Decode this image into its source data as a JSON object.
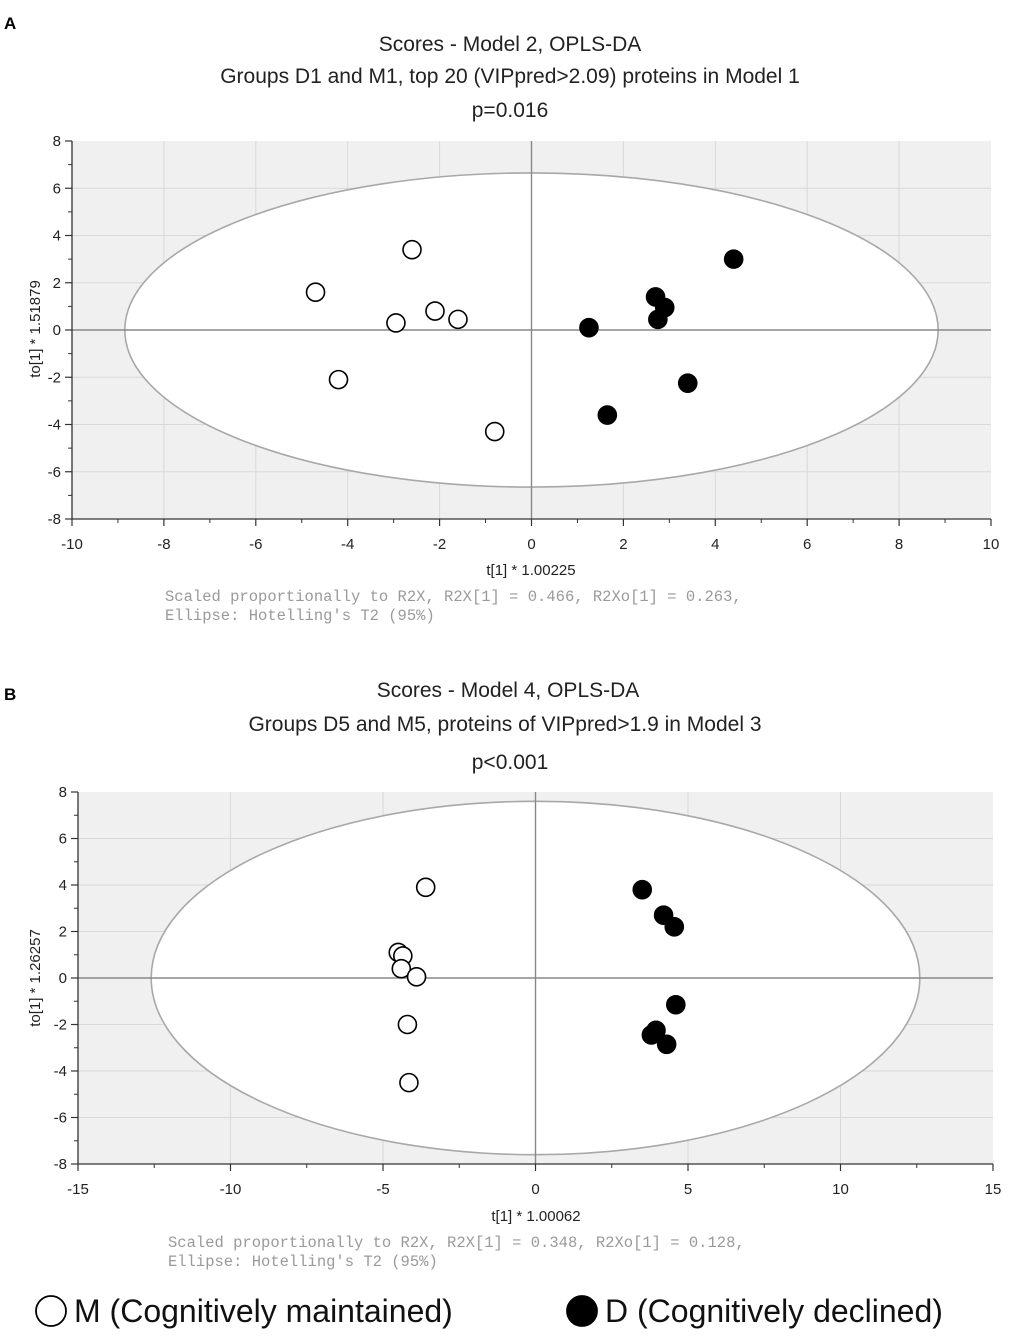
{
  "legend": [
    {
      "label": "M (Cognitively maintained)",
      "fill": "#ffffff",
      "stroke": "#000000"
    },
    {
      "label": "D (Cognitively declined)",
      "fill": "#000000",
      "stroke": "#000000"
    }
  ],
  "colors": {
    "ellipse": "#a8a8a8",
    "background": "#f0f0f0",
    "axes_center": "#888888",
    "grid": "#d9d9d9"
  },
  "chart_data": [
    {
      "type": "scatter",
      "panel": "A",
      "title": [
        "Scores - Model 2, OPLS-DA",
        "Groups D1 and M1, top 20 (VIPpred>2.09) proteins in Model 1",
        "p=0.016"
      ],
      "xlabel": "t[1] * 1.00225",
      "ylabel": "to[1] * 1.51879",
      "xlim": [
        -10,
        10
      ],
      "ylim": [
        -8,
        8
      ],
      "xticks": [
        -10,
        -8,
        -6,
        -4,
        -2,
        0,
        2,
        4,
        6,
        8,
        10
      ],
      "yticks": [
        -8,
        -6,
        -4,
        -2,
        0,
        2,
        4,
        6,
        8
      ],
      "ellipse": {
        "rx": 8.85,
        "ry": 6.65
      },
      "footnote": [
        "Scaled proportionally to R2X, R2X[1] = 0.466, R2Xo[1] = 0.263,",
        "Ellipse: Hotelling's T2 (95%)"
      ],
      "series": [
        {
          "name": "M (Cognitively maintained)",
          "filled": false,
          "points": [
            [
              -4.7,
              1.6
            ],
            [
              -2.6,
              3.4
            ],
            [
              -2.95,
              0.3
            ],
            [
              -2.1,
              0.8
            ],
            [
              -1.6,
              0.45
            ],
            [
              -4.2,
              -2.1
            ],
            [
              -0.8,
              -4.3
            ]
          ]
        },
        {
          "name": "D (Cognitively declined)",
          "filled": true,
          "points": [
            [
              4.4,
              3.0
            ],
            [
              2.7,
              1.4
            ],
            [
              2.9,
              0.95
            ],
            [
              2.75,
              0.45
            ],
            [
              1.25,
              0.1
            ],
            [
              3.4,
              -2.25
            ],
            [
              1.65,
              -3.6
            ]
          ]
        }
      ]
    },
    {
      "type": "scatter",
      "panel": "B",
      "title": [
        "Scores - Model 4, OPLS-DA",
        "Groups D5 and M5, proteins of  VIPpred>1.9 in Model 3",
        "p<0.001"
      ],
      "xlabel": "t[1] * 1.00062",
      "ylabel": "to[1] * 1.26257",
      "xlim": [
        -15,
        15
      ],
      "ylim": [
        -8,
        8
      ],
      "xticks": [
        -15,
        -10,
        -5,
        0,
        5,
        10,
        15
      ],
      "yticks": [
        -8,
        -6,
        -4,
        -2,
        0,
        2,
        4,
        6,
        8
      ],
      "ellipse": {
        "rx": 12.6,
        "ry": 7.6
      },
      "footnote": [
        "Scaled proportionally to R2X, R2X[1] = 0.348, R2Xo[1] = 0.128,",
        "Ellipse: Hotelling's T2 (95%)"
      ],
      "series": [
        {
          "name": "M (Cognitively maintained)",
          "filled": false,
          "points": [
            [
              -3.6,
              3.9
            ],
            [
              -4.5,
              1.1
            ],
            [
              -4.35,
              0.95
            ],
            [
              -4.4,
              0.4
            ],
            [
              -3.9,
              0.05
            ],
            [
              -4.2,
              -2.0
            ],
            [
              -4.15,
              -4.5
            ]
          ]
        },
        {
          "name": "D (Cognitively declined)",
          "filled": true,
          "points": [
            [
              3.5,
              3.8
            ],
            [
              4.2,
              2.7
            ],
            [
              4.55,
              2.2
            ],
            [
              4.6,
              -1.15
            ],
            [
              3.95,
              -2.25
            ],
            [
              3.8,
              -2.45
            ],
            [
              4.3,
              -2.85
            ]
          ]
        }
      ]
    }
  ]
}
